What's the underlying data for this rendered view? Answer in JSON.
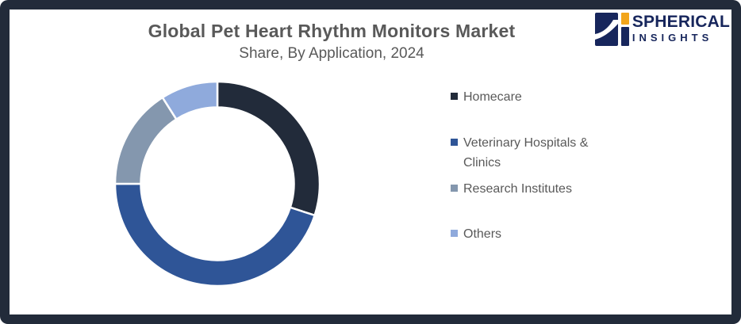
{
  "frame": {
    "border_color": "#222B3A",
    "background": "#FFFFFF"
  },
  "header": {
    "title": "Global Pet Heart Rhythm Monitors Market",
    "subtitle": "Share, By Application, 2024",
    "text_color": "#595959"
  },
  "logo": {
    "name": "SPHERICAL",
    "tagline": "INSIGHTS",
    "navy": "#17265C",
    "orange": "#F2A51B"
  },
  "chart_data": {
    "type": "pie",
    "variant": "donut",
    "title": "Global Pet Heart Rhythm Monitors Market",
    "subtitle": "Share, By Application, 2024",
    "categories": [
      "Homecare",
      "Veterinary Hospitals & Clinics",
      "Research Institutes",
      "Others"
    ],
    "values": [
      30,
      45,
      16,
      9
    ],
    "unit": "%",
    "colors": [
      "#222B3A",
      "#2F5597",
      "#8497AE",
      "#8FAADC"
    ],
    "start_angle_deg": 0,
    "direction": "clockwise",
    "inner_radius_ratio": 0.75,
    "segment_gap_color": "#FFFFFF",
    "legend_position": "right",
    "data_labels": false
  }
}
